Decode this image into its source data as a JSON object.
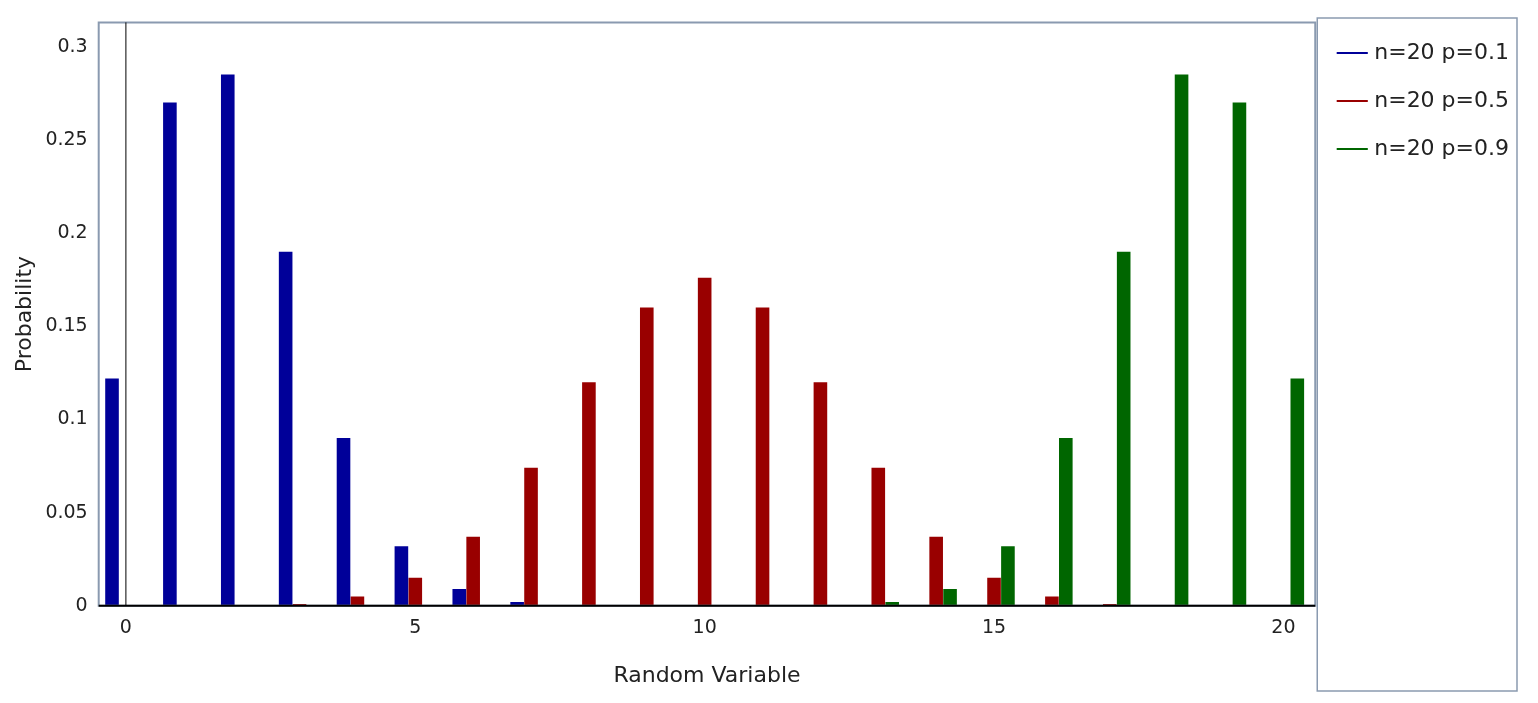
{
  "chart_data": {
    "type": "bar",
    "xlabel": "Random Variable",
    "ylabel": "Probability",
    "x": [
      0,
      1,
      2,
      3,
      4,
      5,
      6,
      7,
      8,
      9,
      10,
      11,
      12,
      13,
      14,
      15,
      16,
      17,
      18,
      19,
      20
    ],
    "series": [
      {
        "name": "n=20 p=0.1",
        "color": "#000099",
        "values": [
          0.122,
          0.27,
          0.285,
          0.19,
          0.09,
          0.032,
          0.009,
          0.002,
          0,
          0,
          0,
          0,
          0,
          0,
          0,
          0,
          0,
          0,
          0,
          0,
          0
        ]
      },
      {
        "name": "n=20 p=0.5",
        "color": "#990000",
        "values": [
          0,
          0,
          0,
          0.001,
          0.005,
          0.015,
          0.037,
          0.074,
          0.12,
          0.16,
          0.176,
          0.16,
          0.12,
          0.074,
          0.037,
          0.015,
          0.005,
          0.001,
          0,
          0,
          0
        ]
      },
      {
        "name": "n=20 p=0.9",
        "color": "#006600",
        "values": [
          0,
          0,
          0,
          0,
          0,
          0,
          0,
          0,
          0,
          0,
          0,
          0,
          0,
          0.002,
          0.009,
          0.032,
          0.09,
          0.19,
          0.285,
          0.27,
          0.122
        ]
      }
    ],
    "xlim": [
      -0.47,
      20.55
    ],
    "xticks": [
      0,
      5,
      10,
      15,
      20
    ],
    "ylim": [
      0,
      0.313
    ],
    "yticks": [
      0,
      0.05,
      0.1,
      0.15,
      0.2,
      0.25,
      0.3
    ],
    "ref_lines": [
      {
        "axis": "x",
        "value": 0,
        "color": "#000000"
      }
    ],
    "grid": false,
    "legend": "top right"
  }
}
